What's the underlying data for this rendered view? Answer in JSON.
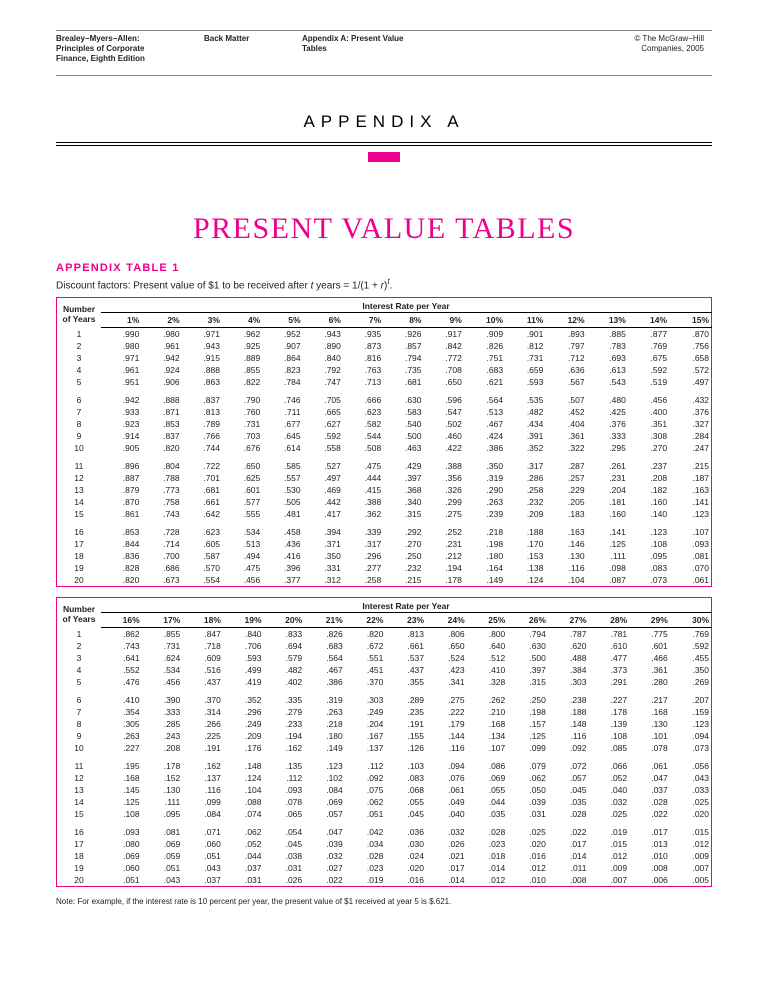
{
  "header": {
    "col1_l1": "Brealey−Myers−Allen:",
    "col1_l2": "Principles of Corporate",
    "col1_l3": "Finance, Eighth Edition",
    "col2": "Back Matter",
    "col3_l1": "Appendix A: Present Value",
    "col3_l2": "Tables",
    "col4_l1": "© The McGraw−Hill",
    "col4_l2": "Companies, 2005"
  },
  "appendix_label": "APPENDIX A",
  "main_title": "PRESENT VALUE TABLES",
  "sub_title": "APPENDIX TABLE 1",
  "formula_prefix": "Discount factors: Present value of $1 to be received after ",
  "formula_middle": " years = 1/(1 + ",
  "formula_var1": "t",
  "formula_var2": "r",
  "formula_suffix": ")",
  "years_header_l1": "Number",
  "years_header_l2": "of Years",
  "rate_header": "Interest Rate per Year",
  "note": "Note: For example, if the interest rate is 10 percent per year, the present value of $1 received at year 5 is $.621.",
  "table1": {
    "rates": [
      "1%",
      "2%",
      "3%",
      "4%",
      "5%",
      "6%",
      "7%",
      "8%",
      "9%",
      "10%",
      "11%",
      "12%",
      "13%",
      "14%",
      "15%"
    ],
    "rows": [
      {
        "y": "1",
        "v": [
          ".990",
          ".980",
          ".971",
          ".962",
          ".952",
          ".943",
          ".935",
          ".926",
          ".917",
          ".909",
          ".901",
          ".893",
          ".885",
          ".877",
          ".870"
        ]
      },
      {
        "y": "2",
        "v": [
          ".980",
          ".961",
          ".943",
          ".925",
          ".907",
          ".890",
          ".873",
          ".857",
          ".842",
          ".826",
          ".812",
          ".797",
          ".783",
          ".769",
          ".756"
        ]
      },
      {
        "y": "3",
        "v": [
          ".971",
          ".942",
          ".915",
          ".889",
          ".864",
          ".840",
          ".816",
          ".794",
          ".772",
          ".751",
          ".731",
          ".712",
          ".693",
          ".675",
          ".658"
        ]
      },
      {
        "y": "4",
        "v": [
          ".961",
          ".924",
          ".888",
          ".855",
          ".823",
          ".792",
          ".763",
          ".735",
          ".708",
          ".683",
          ".659",
          ".636",
          ".613",
          ".592",
          ".572"
        ]
      },
      {
        "y": "5",
        "v": [
          ".951",
          ".906",
          ".863",
          ".822",
          ".784",
          ".747",
          ".713",
          ".681",
          ".650",
          ".621",
          ".593",
          ".567",
          ".543",
          ".519",
          ".497"
        ]
      },
      {
        "gap": true
      },
      {
        "y": "6",
        "v": [
          ".942",
          ".888",
          ".837",
          ".790",
          ".746",
          ".705",
          ".666",
          ".630",
          ".596",
          ".564",
          ".535",
          ".507",
          ".480",
          ".456",
          ".432"
        ]
      },
      {
        "y": "7",
        "v": [
          ".933",
          ".871",
          ".813",
          ".760",
          ".711",
          ".665",
          ".623",
          ".583",
          ".547",
          ".513",
          ".482",
          ".452",
          ".425",
          ".400",
          ".376"
        ]
      },
      {
        "y": "8",
        "v": [
          ".923",
          ".853",
          ".789",
          ".731",
          ".677",
          ".627",
          ".582",
          ".540",
          ".502",
          ".467",
          ".434",
          ".404",
          ".376",
          ".351",
          ".327"
        ]
      },
      {
        "y": "9",
        "v": [
          ".914",
          ".837",
          ".766",
          ".703",
          ".645",
          ".592",
          ".544",
          ".500",
          ".460",
          ".424",
          ".391",
          ".361",
          ".333",
          ".308",
          ".284"
        ]
      },
      {
        "y": "10",
        "v": [
          ".905",
          ".820",
          ".744",
          ".676",
          ".614",
          ".558",
          ".508",
          ".463",
          ".422",
          ".386",
          ".352",
          ".322",
          ".295",
          ".270",
          ".247"
        ]
      },
      {
        "gap": true
      },
      {
        "y": "11",
        "v": [
          ".896",
          ".804",
          ".722",
          ".650",
          ".585",
          ".527",
          ".475",
          ".429",
          ".388",
          ".350",
          ".317",
          ".287",
          ".261",
          ".237",
          ".215"
        ]
      },
      {
        "y": "12",
        "v": [
          ".887",
          ".788",
          ".701",
          ".625",
          ".557",
          ".497",
          ".444",
          ".397",
          ".356",
          ".319",
          ".286",
          ".257",
          ".231",
          ".208",
          ".187"
        ]
      },
      {
        "y": "13",
        "v": [
          ".879",
          ".773",
          ".681",
          ".601",
          ".530",
          ".469",
          ".415",
          ".368",
          ".326",
          ".290",
          ".258",
          ".229",
          ".204",
          ".182",
          ".163"
        ]
      },
      {
        "y": "14",
        "v": [
          ".870",
          ".758",
          ".661",
          ".577",
          ".505",
          ".442",
          ".388",
          ".340",
          ".299",
          ".263",
          ".232",
          ".205",
          ".181",
          ".160",
          ".141"
        ]
      },
      {
        "y": "15",
        "v": [
          ".861",
          ".743",
          ".642",
          ".555",
          ".481",
          ".417",
          ".362",
          ".315",
          ".275",
          ".239",
          ".209",
          ".183",
          ".160",
          ".140",
          ".123"
        ]
      },
      {
        "gap": true
      },
      {
        "y": "16",
        "v": [
          ".853",
          ".728",
          ".623",
          ".534",
          ".458",
          ".394",
          ".339",
          ".292",
          ".252",
          ".218",
          ".188",
          ".163",
          ".141",
          ".123",
          ".107"
        ]
      },
      {
        "y": "17",
        "v": [
          ".844",
          ".714",
          ".605",
          ".513",
          ".436",
          ".371",
          ".317",
          ".270",
          ".231",
          ".198",
          ".170",
          ".146",
          ".125",
          ".108",
          ".093"
        ]
      },
      {
        "y": "18",
        "v": [
          ".836",
          ".700",
          ".587",
          ".494",
          ".416",
          ".350",
          ".296",
          ".250",
          ".212",
          ".180",
          ".153",
          ".130",
          ".111",
          ".095",
          ".081"
        ]
      },
      {
        "y": "19",
        "v": [
          ".828",
          ".686",
          ".570",
          ".475",
          ".396",
          ".331",
          ".277",
          ".232",
          ".194",
          ".164",
          ".138",
          ".116",
          ".098",
          ".083",
          ".070"
        ]
      },
      {
        "y": "20",
        "v": [
          ".820",
          ".673",
          ".554",
          ".456",
          ".377",
          ".312",
          ".258",
          ".215",
          ".178",
          ".149",
          ".124",
          ".104",
          ".087",
          ".073",
          ".061"
        ]
      }
    ]
  },
  "table2": {
    "rates": [
      "16%",
      "17%",
      "18%",
      "19%",
      "20%",
      "21%",
      "22%",
      "23%",
      "24%",
      "25%",
      "26%",
      "27%",
      "28%",
      "29%",
      "30%"
    ],
    "rows": [
      {
        "y": "1",
        "v": [
          ".862",
          ".855",
          ".847",
          ".840",
          ".833",
          ".826",
          ".820",
          ".813",
          ".806",
          ".800",
          ".794",
          ".787",
          ".781",
          ".775",
          ".769"
        ]
      },
      {
        "y": "2",
        "v": [
          ".743",
          ".731",
          ".718",
          ".706",
          ".694",
          ".683",
          ".672",
          ".661",
          ".650",
          ".640",
          ".630",
          ".620",
          ".610",
          ".601",
          ".592"
        ]
      },
      {
        "y": "3",
        "v": [
          ".641",
          ".624",
          ".609",
          ".593",
          ".579",
          ".564",
          ".551",
          ".537",
          ".524",
          ".512",
          ".500",
          ".488",
          ".477",
          ".466",
          ".455"
        ]
      },
      {
        "y": "4",
        "v": [
          ".552",
          ".534",
          ".516",
          ".499",
          ".482",
          ".467",
          ".451",
          ".437",
          ".423",
          ".410",
          ".397",
          ".384",
          ".373",
          ".361",
          ".350"
        ]
      },
      {
        "y": "5",
        "v": [
          ".476",
          ".456",
          ".437",
          ".419",
          ".402",
          ".386",
          ".370",
          ".355",
          ".341",
          ".328",
          ".315",
          ".303",
          ".291",
          ".280",
          ".269"
        ]
      },
      {
        "gap": true
      },
      {
        "y": "6",
        "v": [
          ".410",
          ".390",
          ".370",
          ".352",
          ".335",
          ".319",
          ".303",
          ".289",
          ".275",
          ".262",
          ".250",
          ".238",
          ".227",
          ".217",
          ".207"
        ]
      },
      {
        "y": "7",
        "v": [
          ".354",
          ".333",
          ".314",
          ".296",
          ".279",
          ".263",
          ".249",
          ".235",
          ".222",
          ".210",
          ".198",
          ".188",
          ".178",
          ".168",
          ".159"
        ]
      },
      {
        "y": "8",
        "v": [
          ".305",
          ".285",
          ".266",
          ".249",
          ".233",
          ".218",
          ".204",
          ".191",
          ".179",
          ".168",
          ".157",
          ".148",
          ".139",
          ".130",
          ".123"
        ]
      },
      {
        "y": "9",
        "v": [
          ".263",
          ".243",
          ".225",
          ".209",
          ".194",
          ".180",
          ".167",
          ".155",
          ".144",
          ".134",
          ".125",
          ".116",
          ".108",
          ".101",
          ".094"
        ]
      },
      {
        "y": "10",
        "v": [
          ".227",
          ".208",
          ".191",
          ".176",
          ".162",
          ".149",
          ".137",
          ".126",
          ".116",
          ".107",
          ".099",
          ".092",
          ".085",
          ".078",
          ".073"
        ]
      },
      {
        "gap": true
      },
      {
        "y": "11",
        "v": [
          ".195",
          ".178",
          ".162",
          ".148",
          ".135",
          ".123",
          ".112",
          ".103",
          ".094",
          ".086",
          ".079",
          ".072",
          ".066",
          ".061",
          ".056"
        ]
      },
      {
        "y": "12",
        "v": [
          ".168",
          ".152",
          ".137",
          ".124",
          ".112",
          ".102",
          ".092",
          ".083",
          ".076",
          ".069",
          ".062",
          ".057",
          ".052",
          ".047",
          ".043"
        ]
      },
      {
        "y": "13",
        "v": [
          ".145",
          ".130",
          ".116",
          ".104",
          ".093",
          ".084",
          ".075",
          ".068",
          ".061",
          ".055",
          ".050",
          ".045",
          ".040",
          ".037",
          ".033"
        ]
      },
      {
        "y": "14",
        "v": [
          ".125",
          ".111",
          ".099",
          ".088",
          ".078",
          ".069",
          ".062",
          ".055",
          ".049",
          ".044",
          ".039",
          ".035",
          ".032",
          ".028",
          ".025"
        ]
      },
      {
        "y": "15",
        "v": [
          ".108",
          ".095",
          ".084",
          ".074",
          ".065",
          ".057",
          ".051",
          ".045",
          ".040",
          ".035",
          ".031",
          ".028",
          ".025",
          ".022",
          ".020"
        ]
      },
      {
        "gap": true
      },
      {
        "y": "16",
        "v": [
          ".093",
          ".081",
          ".071",
          ".062",
          ".054",
          ".047",
          ".042",
          ".036",
          ".032",
          ".028",
          ".025",
          ".022",
          ".019",
          ".017",
          ".015"
        ]
      },
      {
        "y": "17",
        "v": [
          ".080",
          ".069",
          ".060",
          ".052",
          ".045",
          ".039",
          ".034",
          ".030",
          ".026",
          ".023",
          ".020",
          ".017",
          ".015",
          ".013",
          ".012"
        ]
      },
      {
        "y": "18",
        "v": [
          ".069",
          ".059",
          ".051",
          ".044",
          ".038",
          ".032",
          ".028",
          ".024",
          ".021",
          ".018",
          ".016",
          ".014",
          ".012",
          ".010",
          ".009"
        ]
      },
      {
        "y": "19",
        "v": [
          ".060",
          ".051",
          ".043",
          ".037",
          ".031",
          ".027",
          ".023",
          ".020",
          ".017",
          ".014",
          ".012",
          ".011",
          ".009",
          ".008",
          ".007"
        ]
      },
      {
        "y": "20",
        "v": [
          ".051",
          ".043",
          ".037",
          ".031",
          ".026",
          ".022",
          ".019",
          ".016",
          ".014",
          ".012",
          ".010",
          ".008",
          ".007",
          ".006",
          ".005"
        ]
      }
    ]
  },
  "colors": {
    "pink": "#ec008c",
    "text": "#222222",
    "rule": "#000000",
    "background": "#ffffff"
  }
}
